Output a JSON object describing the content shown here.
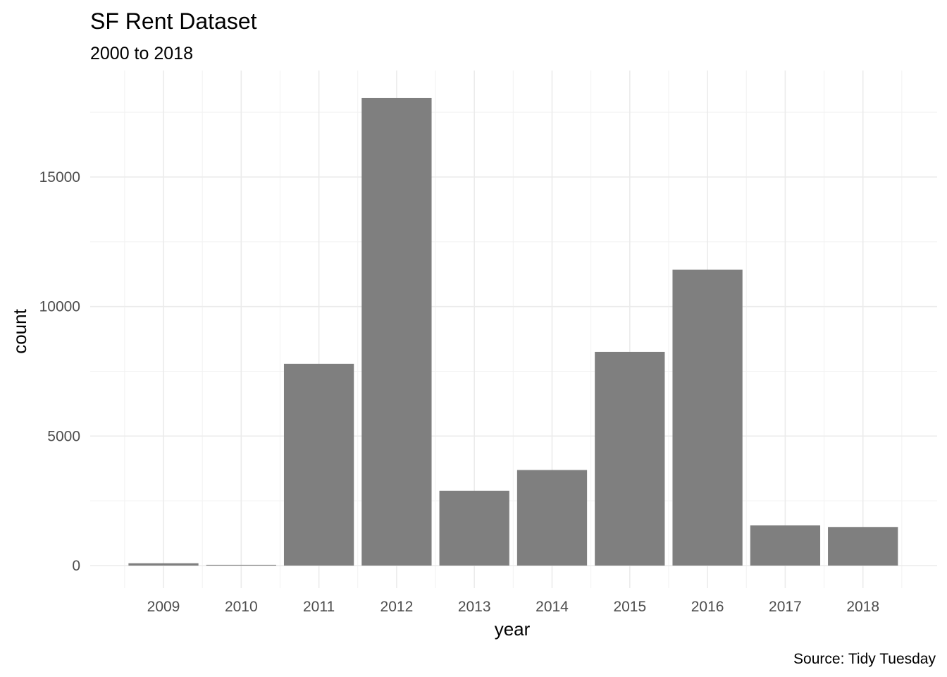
{
  "chart_data": {
    "type": "bar",
    "title": "SF Rent Dataset",
    "subtitle": "2000 to 2018",
    "xlabel": "year",
    "ylabel": "count",
    "caption": "Source: Tidy Tuesday",
    "categories": [
      "2009",
      "2010",
      "2011",
      "2012",
      "2013",
      "2014",
      "2015",
      "2016",
      "2017",
      "2018"
    ],
    "values": [
      90,
      30,
      7790,
      18050,
      2890,
      3690,
      8250,
      11420,
      1550,
      1490
    ],
    "ylim": [
      0,
      18000
    ],
    "y_ticks": [
      0,
      5000,
      10000,
      15000
    ],
    "y_tick_labels": [
      "0",
      "5000",
      "10000",
      "15000"
    ],
    "grid": true,
    "legend": "none",
    "bar_color": "#7f7f7f",
    "background": "#ffffff"
  }
}
